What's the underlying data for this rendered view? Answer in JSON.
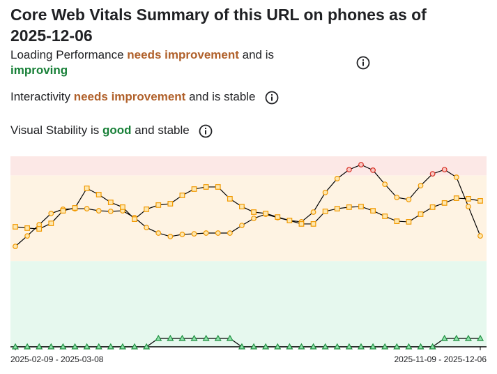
{
  "chart_data": {
    "type": "line",
    "title": "Core Web Vitals Summary of this URL on phones as of 2025-12-06",
    "summary": [
      {
        "parts": [
          {
            "text": "Loading Performance"
          },
          {
            "text": "needs improvement",
            "color": "#b0602a"
          },
          {
            "text": "and is"
          },
          {
            "text": "improving",
            "color": "#188038"
          }
        ]
      },
      {
        "parts": [
          {
            "text": "Interactivity"
          },
          {
            "text": "needs improvement",
            "color": "#b0602a"
          },
          {
            "text": "and is stable"
          }
        ]
      },
      {
        "parts": [
          {
            "text": "Visual Stability is"
          },
          {
            "text": "good",
            "color": "#188038"
          },
          {
            "text": "and stable"
          }
        ]
      }
    ],
    "categories": [
      "2025-02-09 - 2025-03-08",
      null,
      null,
      null,
      null,
      null,
      null,
      null,
      null,
      null,
      null,
      null,
      null,
      null,
      null,
      null,
      null,
      null,
      null,
      null,
      null,
      null,
      null,
      null,
      null,
      null,
      null,
      null,
      null,
      null,
      null,
      null,
      null,
      null,
      null,
      null,
      null,
      null,
      null,
      "2025-11-09 - 2025-12-06"
    ],
    "ylim": [
      0,
      100
    ],
    "bands": [
      {
        "from": 0,
        "to": 45,
        "color": "#e6f8ee",
        "marker_color": "#1e8e3e",
        "marker_fill": "#8fe0ab"
      },
      {
        "from": 45,
        "to": 90,
        "color": "#fef3e3",
        "marker_color": "#f29900",
        "marker_fill": "#fde7b0"
      },
      {
        "from": 90,
        "to": 100,
        "color": "#fce8e6",
        "marker_color": "#d93025",
        "marker_fill": "#f8c9c4"
      }
    ],
    "line_color": "#000000",
    "series": [
      {
        "marker": "circle",
        "values": [
          52.7,
          58.2,
          64.1,
          70.0,
          72.2,
          72.5,
          72.5,
          71.4,
          71.1,
          71.4,
          67.8,
          62.6,
          59.7,
          57.9,
          59.0,
          59.3,
          59.7,
          59.7,
          59.7,
          63.7,
          67.4,
          69.6,
          67.8,
          66.3,
          65.6,
          70.7,
          81.0,
          88.3,
          93.0,
          95.6,
          92.7,
          85.3,
          78.4,
          77.3,
          84.6,
          90.8,
          93.0,
          89.0,
          73.6,
          58.2
        ]
      },
      {
        "marker": "square",
        "values": [
          63.0,
          62.3,
          61.9,
          64.8,
          71.4,
          72.9,
          83.2,
          79.9,
          75.8,
          73.3,
          67.0,
          72.2,
          74.4,
          75.1,
          79.5,
          82.8,
          83.9,
          83.9,
          77.7,
          73.6,
          70.7,
          70.0,
          68.1,
          66.3,
          64.5,
          64.5,
          71.1,
          72.5,
          73.3,
          73.6,
          71.4,
          68.5,
          65.9,
          65.6,
          69.6,
          73.3,
          75.5,
          78.0,
          77.7,
          76.6
        ]
      },
      {
        "marker": "triangle",
        "values": [
          0,
          0,
          0,
          0,
          0,
          0,
          0,
          0,
          0,
          0,
          0,
          0,
          4.4,
          4.4,
          4.4,
          4.4,
          4.4,
          4.4,
          4.4,
          0,
          0,
          0,
          0,
          0,
          0,
          0,
          0,
          0,
          0,
          0,
          0,
          0,
          0,
          0,
          0,
          0,
          4.4,
          4.4,
          4.4,
          4.4
        ]
      }
    ]
  }
}
